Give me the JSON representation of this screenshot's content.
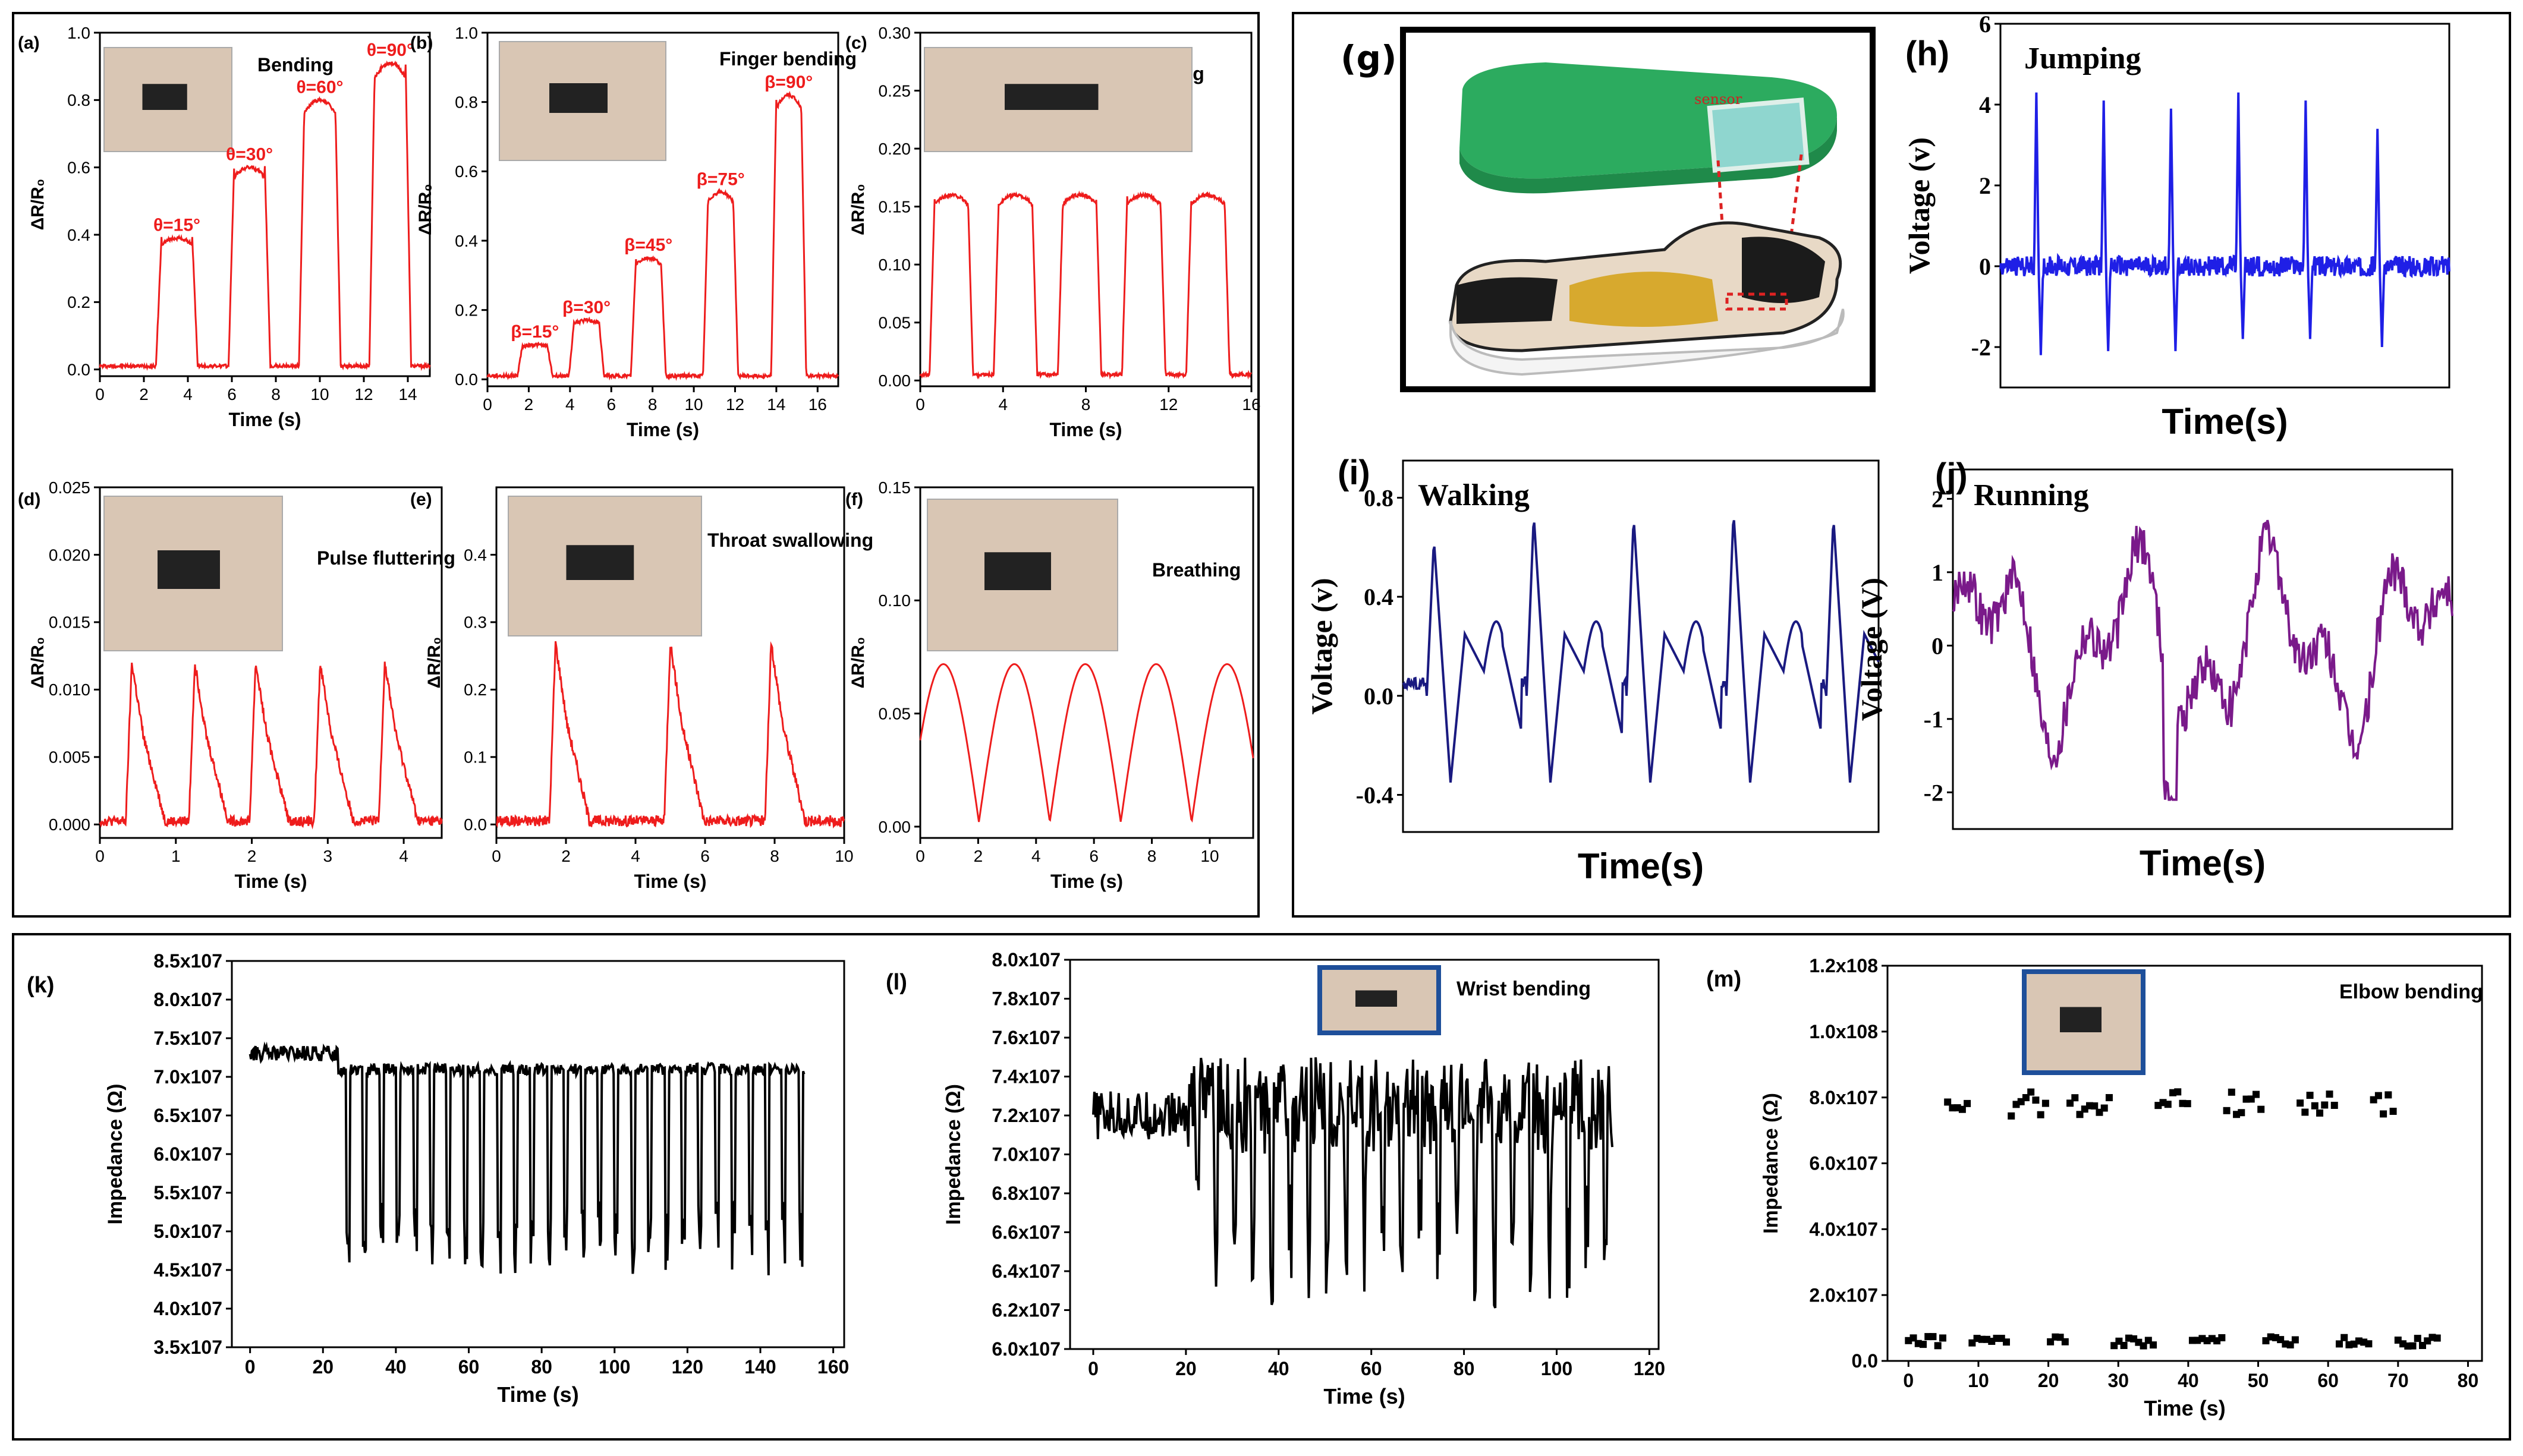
{
  "colors": {
    "red": "#ee1c1c",
    "blue": "#1f1fe6",
    "navy": "#1a1a80",
    "purple": "#7a1a8a",
    "black": "#000000"
  },
  "chart_data": [
    {
      "id": "a",
      "type": "line",
      "label": "(a)",
      "annotation": "Bending",
      "xlabel": "Time (s)",
      "ylabel": "ΔR/R₀",
      "xlim": [
        0,
        15
      ],
      "ylim": [
        -0.02,
        1.0
      ],
      "xticks": [
        0,
        2,
        4,
        6,
        8,
        10,
        12,
        14
      ],
      "yticks": [
        0.0,
        0.2,
        0.4,
        0.6,
        0.8,
        1.0
      ],
      "yfmt": 1,
      "color": "red",
      "peaks": [
        {
          "x": 3.5,
          "y": 0.39,
          "label": "θ=15°"
        },
        {
          "x": 6.8,
          "y": 0.6,
          "label": "θ=30°"
        },
        {
          "x": 10.0,
          "y": 0.8,
          "label": "θ=60°"
        },
        {
          "x": 13.2,
          "y": 0.91,
          "label": "θ=90°"
        }
      ],
      "width": 1.4,
      "base": 0.01,
      "photo": "finger-bending-photo"
    },
    {
      "id": "b",
      "type": "line",
      "label": "(b)",
      "annotation": "Finger bending",
      "xlabel": "Time (s)",
      "ylabel": "ΔR/R₀",
      "xlim": [
        0,
        17
      ],
      "ylim": [
        -0.02,
        1.0
      ],
      "xticks": [
        0,
        2,
        4,
        6,
        8,
        10,
        12,
        14,
        16
      ],
      "yticks": [
        0.0,
        0.2,
        0.4,
        0.6,
        0.8,
        1.0
      ],
      "yfmt": 1,
      "color": "red",
      "peaks": [
        {
          "x": 2.3,
          "y": 0.1,
          "label": "β=15°"
        },
        {
          "x": 4.8,
          "y": 0.17,
          "label": "β=30°"
        },
        {
          "x": 7.8,
          "y": 0.35,
          "label": "β=45°"
        },
        {
          "x": 11.3,
          "y": 0.54,
          "label": "β=75°"
        },
        {
          "x": 14.6,
          "y": 0.82,
          "label": "β=90°"
        }
      ],
      "width": 1.2,
      "base": 0.01,
      "photo": "finger-bend-photo"
    },
    {
      "id": "c",
      "type": "line",
      "label": "(c)",
      "annotation": "Wrist bending",
      "xlabel": "Time (s)",
      "ylabel": "ΔR/R₀",
      "xlim": [
        0,
        16
      ],
      "ylim": [
        -0.005,
        0.3
      ],
      "xticks": [
        0,
        4,
        8,
        12,
        16
      ],
      "yticks": [
        0.0,
        0.05,
        0.1,
        0.15,
        0.2,
        0.25,
        0.3
      ],
      "yfmt": 2,
      "color": "red",
      "peaks": [
        {
          "x": 1.5,
          "y": 0.16
        },
        {
          "x": 4.6,
          "y": 0.16
        },
        {
          "x": 7.7,
          "y": 0.16
        },
        {
          "x": 10.8,
          "y": 0.16
        },
        {
          "x": 13.9,
          "y": 0.16
        }
      ],
      "width": 1.6,
      "base": 0.005,
      "photo": "wrist-photo"
    },
    {
      "id": "d",
      "type": "line",
      "label": "(d)",
      "annotation": "Pulse fluttering",
      "xlabel": "Time (s)",
      "ylabel": "ΔR/R₀",
      "xlim": [
        0,
        4.5
      ],
      "ylim": [
        -0.001,
        0.025
      ],
      "xticks": [
        0,
        1,
        2,
        3,
        4
      ],
      "yticks": [
        0.0,
        0.005,
        0.01,
        0.015,
        0.02,
        0.025
      ],
      "yfmt": 3,
      "color": "red",
      "pulse": [
        0.42,
        1.25,
        2.05,
        2.9,
        3.75
      ],
      "pulseHeight": 0.012,
      "photo": "pulse-photo"
    },
    {
      "id": "e",
      "type": "line",
      "label": "(e)",
      "annotation": "Throat swallowing",
      "xlabel": "Time (s)",
      "ylabel": "ΔR/R₀",
      "xlim": [
        0,
        10
      ],
      "ylim": [
        -0.02,
        0.5
      ],
      "xticks": [
        0,
        2,
        4,
        6,
        8,
        10
      ],
      "yticks": [
        0.0,
        0.1,
        0.2,
        0.3,
        0.4
      ],
      "yfmt": 1,
      "color": "red",
      "pulse": [
        1.7,
        5.0,
        7.9
      ],
      "pulseHeight": 0.27,
      "photo": "throat-photo"
    },
    {
      "id": "f",
      "type": "line",
      "label": "(f)",
      "annotation": "Breathing",
      "xlabel": "Time (s)",
      "ylabel": "ΔR/R₀",
      "xlim": [
        0,
        11.5
      ],
      "ylim": [
        -0.005,
        0.15
      ],
      "xticks": [
        0,
        2,
        4,
        6,
        8,
        10
      ],
      "yticks": [
        0.0,
        0.05,
        0.1,
        0.15
      ],
      "yfmt": 2,
      "color": "red",
      "breath": [
        0.8,
        3.0,
        5.5,
        8.0,
        10.3
      ],
      "photo": "mask-photo"
    },
    {
      "id": "h",
      "type": "line",
      "label": "(h)",
      "annotation": "Jumping",
      "xlabel": "Time(s)",
      "ylabel": "Voltage (v)",
      "xlim": [
        0,
        10
      ],
      "ylim": [
        -3,
        6
      ],
      "xticks": [],
      "yticks": [
        -2,
        0,
        2,
        4,
        6
      ],
      "yfmt": 0,
      "color": "blue",
      "spikes": [
        {
          "x": 0.8,
          "hi": 4.3,
          "lo": -2.2
        },
        {
          "x": 2.3,
          "hi": 4.1,
          "lo": -2.1
        },
        {
          "x": 3.8,
          "hi": 3.9,
          "lo": -2.1
        },
        {
          "x": 5.3,
          "hi": 4.3,
          "lo": -1.8
        },
        {
          "x": 6.8,
          "hi": 4.1,
          "lo": -1.8
        },
        {
          "x": 8.4,
          "hi": 3.4,
          "lo": -2.0
        }
      ]
    },
    {
      "id": "i",
      "type": "line",
      "label": "(i)",
      "annotation": "Walking",
      "xlabel": "Time(s)",
      "ylabel": "Voltage (v)",
      "xlim": [
        0,
        10
      ],
      "ylim": [
        -0.55,
        0.95
      ],
      "xticks": [],
      "yticks": [
        -0.4,
        0.0,
        0.4,
        0.8
      ],
      "yfmt": 1,
      "color": "navy",
      "walk": [
        0.5,
        2.6,
        4.7,
        6.8,
        8.9
      ],
      "walkHeight": [
        0.63,
        0.73,
        0.72,
        0.74,
        0.72
      ]
    },
    {
      "id": "j",
      "type": "line",
      "label": "(j)",
      "annotation": "Running",
      "xlabel": "Time(s)",
      "ylabel": "Voltage (V)",
      "xlim": [
        0,
        10
      ],
      "ylim": [
        -2.5,
        2.4
      ],
      "xticks": [],
      "yticks": [
        -2,
        -1,
        0,
        1,
        2
      ],
      "yfmt": 0,
      "color": "purple"
    },
    {
      "id": "k",
      "type": "line",
      "label": "(k)",
      "annotation": "",
      "xlabel": "Time (s)",
      "ylabel": "Impedance (Ω)",
      "xlim": [
        -5,
        163
      ],
      "ylim": [
        35000000.0,
        85000000.0
      ],
      "xticks": [
        0,
        20,
        40,
        60,
        80,
        100,
        120,
        140,
        160
      ],
      "yticks": [
        35000000.0,
        40000000.0,
        45000000.0,
        50000000.0,
        55000000.0,
        60000000.0,
        65000000.0,
        70000000.0,
        75000000.0,
        80000000.0,
        85000000.0
      ],
      "yfmt": "sci1",
      "color": "black"
    },
    {
      "id": "l",
      "type": "line",
      "label": "(l)",
      "annotation": "Wrist bending",
      "xlabel": "Time (s)",
      "ylabel": "Impedance (Ω)",
      "xlim": [
        -5,
        122
      ],
      "ylim": [
        60000000.0,
        80000000.0
      ],
      "xticks": [
        0,
        20,
        40,
        60,
        80,
        100,
        120
      ],
      "yticks": [
        60000000.0,
        62000000.0,
        64000000.0,
        66000000.0,
        68000000.0,
        70000000.0,
        72000000.0,
        74000000.0,
        76000000.0,
        78000000.0,
        80000000.0
      ],
      "yfmt": "sci1",
      "color": "black"
    },
    {
      "id": "m",
      "type": "scatter",
      "label": "(m)",
      "annotation": "Elbow bending",
      "xlabel": "Time (s)",
      "ylabel": "Impedance (Ω)",
      "xlim": [
        -3,
        82
      ],
      "ylim": [
        0,
        120000000.0
      ],
      "xticks": [
        0,
        10,
        20,
        30,
        40,
        50,
        60,
        70,
        80
      ],
      "yticks": [
        0,
        20000000.0,
        40000000.0,
        60000000.0,
        80000000.0,
        100000000.0,
        120000000.0
      ],
      "yfmt": "sci0",
      "color": "black"
    }
  ],
  "panel_g": {
    "label": "(g)",
    "sensor": "sensor"
  }
}
